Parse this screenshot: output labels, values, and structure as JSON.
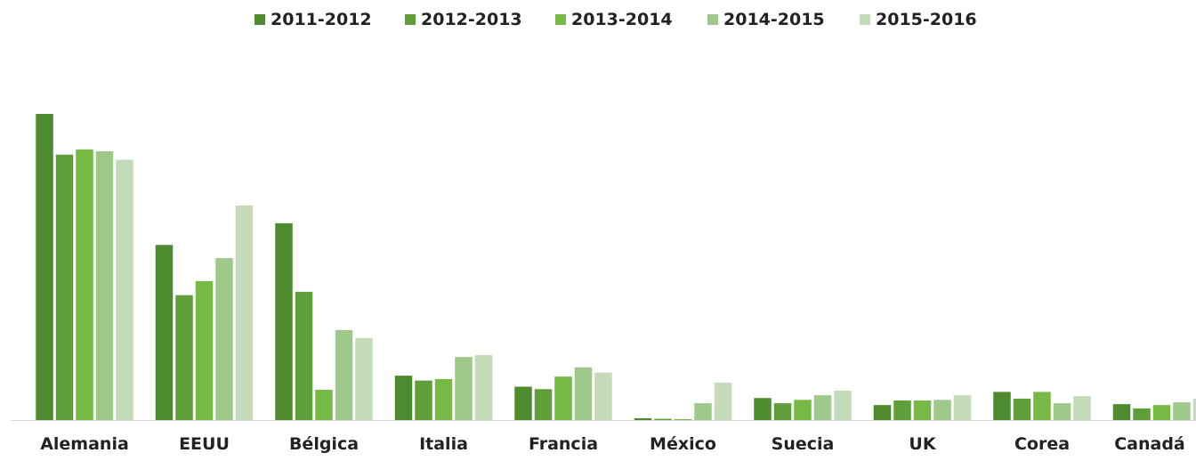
{
  "chart_data": {
    "type": "bar",
    "title": "",
    "xlabel": "",
    "ylabel": "",
    "legend_position": "top",
    "grid": false,
    "ylim": [
      0,
      100
    ],
    "categories": [
      "Alemania",
      "EEUU",
      "Bélgica",
      "Italia",
      "Francia",
      "México",
      "Suecia",
      "UK",
      "Corea",
      "Canadá"
    ],
    "series": [
      {
        "name": "2011-2012",
        "color": "#4e8a2e",
        "values": [
          100,
          57.2,
          64.3,
          14.5,
          10.9,
          0.6,
          7.2,
          4.9,
          9.2,
          5.2
        ]
      },
      {
        "name": "2012-2013",
        "color": "#5f9e38",
        "values": [
          86.7,
          40.8,
          41.9,
          12.9,
          10.1,
          0.4,
          5.5,
          6.4,
          7.0,
          3.8
        ]
      },
      {
        "name": "2013-2014",
        "color": "#76ba45",
        "values": [
          88.4,
          45.4,
          9.9,
          13.4,
          14.2,
          0.3,
          6.6,
          6.4,
          9.2,
          4.9
        ]
      },
      {
        "name": "2014-2015",
        "color": "#9ec98a",
        "values": [
          87.8,
          52.9,
          29.4,
          20.6,
          17.2,
          5.5,
          8.1,
          6.6,
          5.5,
          5.8
        ]
      },
      {
        "name": "2015-2016",
        "color": "#c3dbb8",
        "values": [
          85.0,
          70.1,
          26.8,
          21.2,
          15.5,
          12.2,
          9.6,
          8.1,
          7.8,
          7.0
        ]
      }
    ]
  }
}
